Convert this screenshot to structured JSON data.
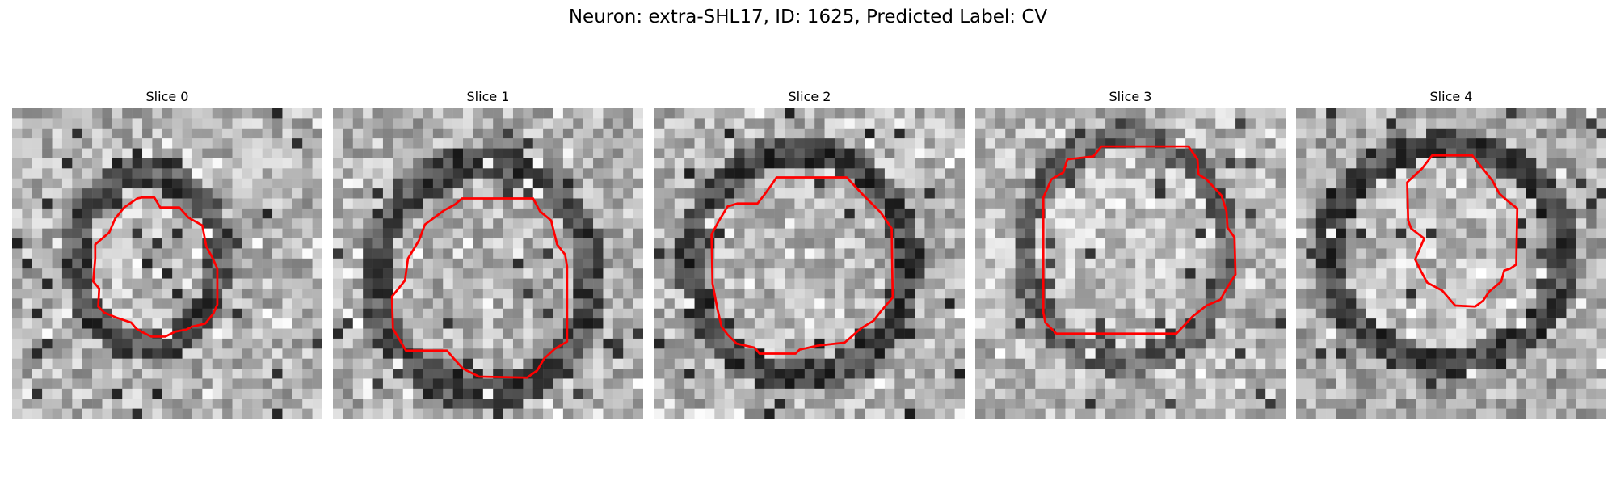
{
  "figure": {
    "title": "Neuron: extra-SHL17, ID: 1625, Predicted Label: CV"
  },
  "slices": [
    {
      "title": "Slice 0"
    },
    {
      "title": "Slice 1"
    },
    {
      "title": "Slice 2"
    },
    {
      "title": "Slice 3"
    },
    {
      "title": "Slice 4"
    }
  ],
  "colors": {
    "contour": "#ff0000",
    "colormap": "grayscale"
  }
}
